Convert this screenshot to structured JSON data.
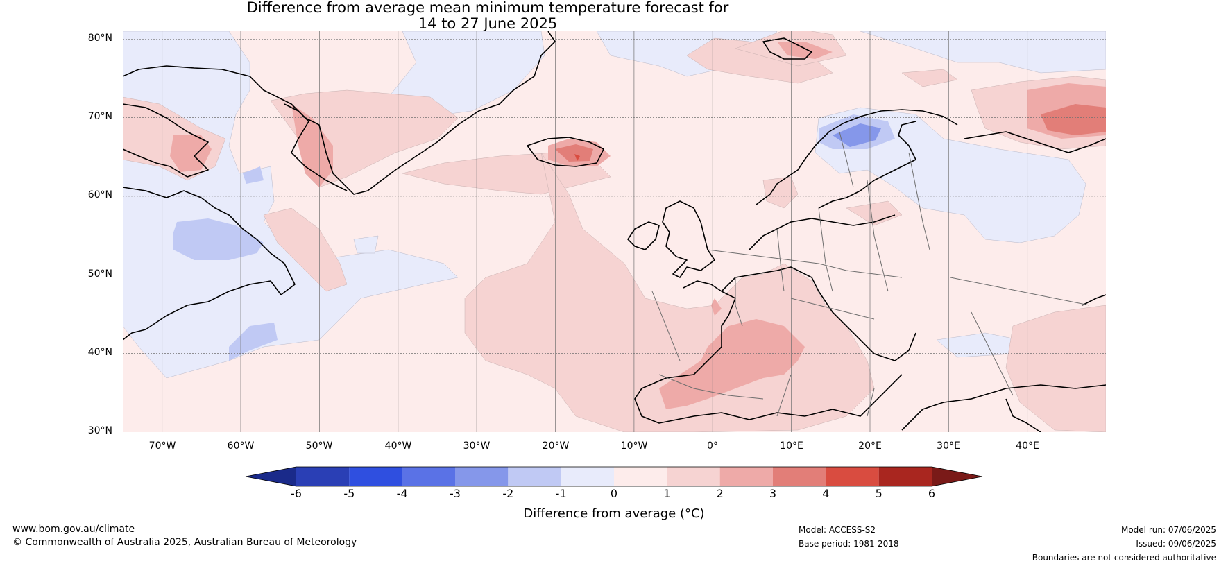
{
  "title": {
    "line1": "Difference from average mean minimum temperature forecast for",
    "line2": "14 to 27 June 2025"
  },
  "map": {
    "lat_labels": [
      "80°N",
      "70°N",
      "60°N",
      "50°N",
      "40°N",
      "30°N"
    ],
    "lon_labels": [
      "70°W",
      "60°W",
      "50°W",
      "40°W",
      "30°W",
      "20°W",
      "10°W",
      "0°",
      "10°E",
      "20°E",
      "30°E",
      "40°E"
    ],
    "extent": {
      "lon": [
        -75,
        50
      ],
      "lat": [
        30,
        81
      ]
    }
  },
  "colorbar": {
    "ticks": [
      "-6",
      "-5",
      "-4",
      "-3",
      "-2",
      "-1",
      "0",
      "1",
      "2",
      "3",
      "4",
      "5",
      "6"
    ],
    "colors": [
      "#1a2a8a",
      "#2a3fb5",
      "#2f4fe0",
      "#5a72e6",
      "#8597ea",
      "#c0c9f4",
      "#e8ebfb",
      "#fdeceb",
      "#f6d3d2",
      "#eeaaa8",
      "#e27e78",
      "#d94c40",
      "#a9261f",
      "#7a1a18"
    ],
    "label": "Difference from average (°C)"
  },
  "footer": {
    "website": "www.bom.gov.au/climate",
    "copyright": "© Commonwealth of Australia 2025, Australian Bureau of Meteorology",
    "model": "Model: ACCESS-S2",
    "base_period": "Base period: 1981-2018",
    "model_run": "Model run: 07/06/2025",
    "issued": "Issued: 09/06/2025",
    "disclaimer": "Boundaries are not considered authoritative"
  }
}
